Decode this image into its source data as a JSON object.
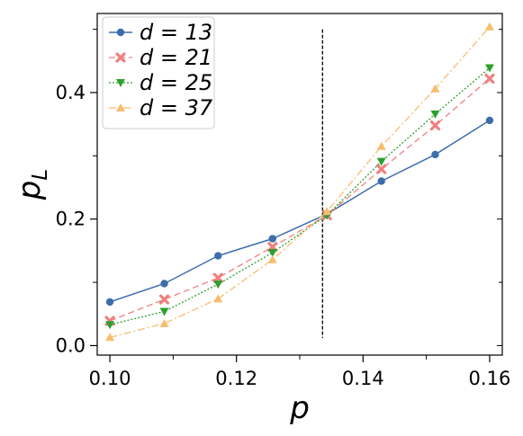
{
  "chart_data": {
    "type": "line",
    "xlabel_main": "p",
    "ylabel_main": "p",
    "ylabel_sub": "L",
    "x": [
      0.1,
      0.1086,
      0.1171,
      0.1257,
      0.1343,
      0.1429,
      0.1514,
      0.16
    ],
    "xlim": [
      0.098,
      0.162
    ],
    "ylim": [
      -0.015,
      0.525
    ],
    "xticks": [
      0.1,
      0.12,
      0.14,
      0.16
    ],
    "xtick_labels": [
      "0.10",
      "0.12",
      "0.14",
      "0.16"
    ],
    "yticks": [
      0.0,
      0.2,
      0.4
    ],
    "ytick_labels": [
      "0.0",
      "0.2",
      "0.4"
    ],
    "vline": {
      "x": 0.1336,
      "y_from": 0.012,
      "y_to": 0.5,
      "color": "#000000"
    },
    "series": [
      {
        "name": "d = 13",
        "color": "#3d6dab",
        "marker": "circle",
        "dash": "",
        "width": 1.5,
        "values": [
          0.069,
          0.098,
          0.142,
          0.169,
          0.208,
          0.26,
          0.302,
          0.356
        ]
      },
      {
        "name": "d = 21",
        "color": "#f08080",
        "marker": "x",
        "dash": "7,4",
        "width": 1.3,
        "values": [
          0.039,
          0.073,
          0.107,
          0.156,
          0.206,
          0.279,
          0.348,
          0.422
        ]
      },
      {
        "name": "d = 25",
        "color": "#2ca02c",
        "marker": "triangle-down",
        "dash": "2,2",
        "width": 1.3,
        "values": [
          0.033,
          0.054,
          0.097,
          0.147,
          0.206,
          0.291,
          0.366,
          0.439
        ]
      },
      {
        "name": "d = 37",
        "color": "#f7bd6e",
        "marker": "triangle-up",
        "dash": "8,3,2,3",
        "width": 1.3,
        "values": [
          0.013,
          0.035,
          0.074,
          0.136,
          0.212,
          0.315,
          0.406,
          0.504
        ]
      }
    ],
    "legend_position": "top-left",
    "grid": false
  }
}
